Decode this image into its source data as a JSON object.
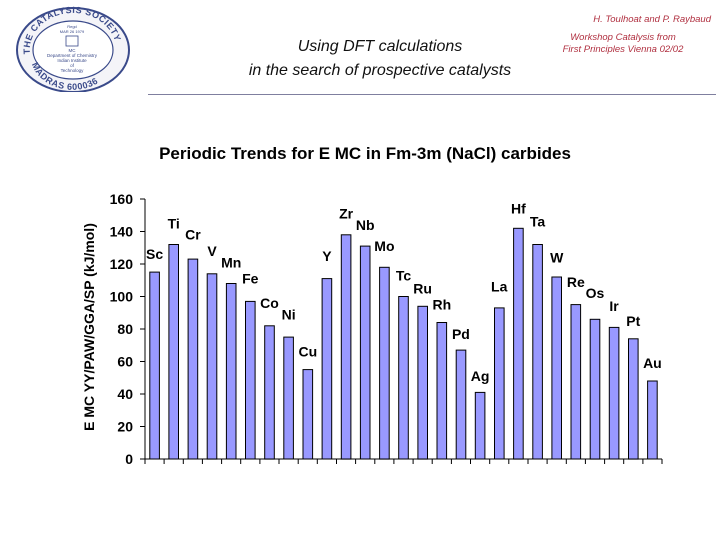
{
  "header": {
    "title_line1": "Using DFT calculations",
    "title_line2": "in the search of prospective catalysts",
    "authors": "H. Toulhoat and P. Raybaud",
    "source_line1": "Workshop Catalysis from",
    "source_line2": "First Principles Vienna 02/02"
  },
  "logo": {
    "ring_top": "THE CATALYSIS SOCIETY OF INDIA",
    "ring_bottom": "MADRAS 600036",
    "regd": "Regd",
    "regd_date": "MAR 26 1979",
    "center_lines": [
      "MC",
      "Department of Chemistry",
      "Indian Institute",
      "of",
      "Technology"
    ]
  },
  "colors": {
    "bar_fill": "#9999ff",
    "bar_stroke": "#000000",
    "axis": "#000000"
  },
  "chart_data": {
    "type": "bar",
    "title": "Periodic Trends for E MC in Fm-3m (NaCl) carbides",
    "xlabel": "",
    "ylabel": "E MC YY/PAW/GGA/SP (kJ/mol)",
    "ylim": [
      0,
      160
    ],
    "yticks": [
      0,
      20,
      40,
      60,
      80,
      100,
      120,
      140,
      160
    ],
    "grid": false,
    "categories": [
      "Sc",
      "Ti",
      "Cr",
      "V",
      "Mn",
      "Fe",
      "Co",
      "Ni",
      "Cu",
      "Y",
      "Zr",
      "Nb",
      "Mo",
      "Tc",
      "Ru",
      "Rh",
      "Pd",
      "Ag",
      "La",
      "Hf",
      "Ta",
      "W",
      "Re",
      "Os",
      "Ir",
      "Pt",
      "Au"
    ],
    "values": [
      115,
      132,
      123,
      114,
      108,
      97,
      82,
      75,
      55,
      111,
      138,
      131,
      118,
      100,
      94,
      84,
      67,
      41,
      93,
      142,
      132,
      112,
      95,
      86,
      81,
      74,
      48
    ],
    "label_values": [
      123,
      142,
      135,
      125,
      118,
      108,
      93,
      86,
      63,
      122,
      148,
      141,
      128,
      110,
      102,
      92,
      74,
      48,
      103,
      151,
      143,
      121,
      106,
      99,
      91,
      82,
      56
    ]
  }
}
